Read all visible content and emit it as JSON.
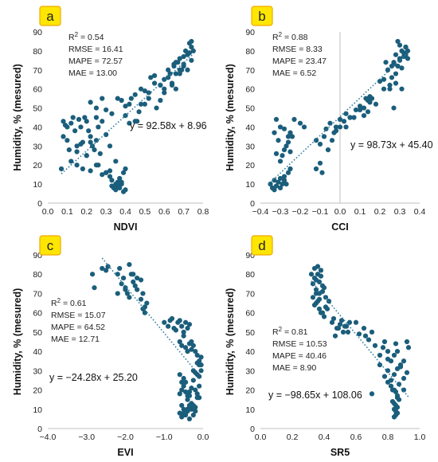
{
  "chart_data": [
    {
      "type": "scatter",
      "label": "a",
      "xlabel": "NDVI",
      "ylabel": "Humidity, % (mesured)",
      "xlim": [
        0.0,
        0.8
      ],
      "ylim": [
        0,
        90
      ],
      "xticks": [
        "0.0",
        "0.1",
        "0.2",
        "0.3",
        "0.4",
        "0.5",
        "0.6",
        "0.7",
        "0.8"
      ],
      "yticks": [
        "0",
        "10",
        "20",
        "30",
        "40",
        "50",
        "60",
        "70",
        "80",
        "90"
      ],
      "stats": [
        {
          "name": "R",
          "value": " = 0.54"
        },
        {
          "name": "RMSE",
          "value": "RMSE = 16.41"
        },
        {
          "name": "MAPE",
          "value": "MAPE = 72.57"
        },
        {
          "name": "MAE",
          "value": "MAE = 13.00"
        }
      ],
      "equation": "y = 92.58x + 8.96",
      "trendline": {
        "slope": 92.58,
        "intercept": 8.96,
        "x_range": [
          0.07,
          0.75
        ]
      },
      "marker_color": "#1B5E7B",
      "x": [
        0.07,
        0.08,
        0.09,
        0.1,
        0.11,
        0.12,
        0.13,
        0.14,
        0.15,
        0.16,
        0.17,
        0.18,
        0.19,
        0.2,
        0.21,
        0.22,
        0.23,
        0.24,
        0.25,
        0.26,
        0.08,
        0.1,
        0.12,
        0.15,
        0.18,
        0.2,
        0.22,
        0.25,
        0.28,
        0.3,
        0.32,
        0.15,
        0.17,
        0.2,
        0.22,
        0.25,
        0.27,
        0.3,
        0.32,
        0.35,
        0.26,
        0.28,
        0.3,
        0.32,
        0.33,
        0.34,
        0.35,
        0.36,
        0.37,
        0.38,
        0.39,
        0.4,
        0.35,
        0.37,
        0.38,
        0.33,
        0.36,
        0.39,
        0.4,
        0.22,
        0.25,
        0.28,
        0.3,
        0.33,
        0.36,
        0.38,
        0.4,
        0.42,
        0.43,
        0.45,
        0.47,
        0.48,
        0.5,
        0.52,
        0.53,
        0.55,
        0.55,
        0.58,
        0.6,
        0.62,
        0.65,
        0.66,
        0.68,
        0.7,
        0.72,
        0.74,
        0.45,
        0.5,
        0.52,
        0.56,
        0.58,
        0.6,
        0.62,
        0.64,
        0.65,
        0.66,
        0.68,
        0.7,
        0.71,
        0.72,
        0.73,
        0.74,
        0.75,
        0.63,
        0.67,
        0.69,
        0.7,
        0.73,
        0.74,
        0.4,
        0.42,
        0.46,
        0.48,
        0.58,
        0.6,
        0.64,
        0.66,
        0.68
      ],
      "y": [
        18,
        35,
        41,
        33,
        28,
        42,
        45,
        38,
        30,
        44,
        40,
        32,
        45,
        43,
        38,
        35,
        30,
        28,
        33,
        40,
        43,
        40,
        22,
        20,
        18,
        25,
        17,
        45,
        43,
        36,
        30,
        27,
        31,
        25,
        32,
        20,
        26,
        16,
        17,
        22,
        20,
        15,
        16,
        14,
        12,
        8,
        10,
        9,
        13,
        11,
        16,
        18,
        7,
        8,
        10,
        9,
        11,
        6,
        7,
        53,
        50,
        55,
        49,
        47,
        55,
        54,
        51,
        52,
        55,
        57,
        48,
        52,
        52,
        58,
        66,
        67,
        63,
        62,
        60,
        66,
        72,
        60,
        68,
        72,
        70,
        75,
        43,
        59,
        55,
        50,
        62,
        65,
        70,
        63,
        73,
        74,
        76,
        77,
        80,
        78,
        79,
        82,
        80,
        68,
        74,
        70,
        73,
        84,
        85,
        46,
        42,
        43,
        60,
        54,
        58,
        62,
        68,
        70
      ]
    },
    {
      "type": "scatter",
      "label": "b",
      "xlabel": "CCI",
      "ylabel": "Humidity, % (mesured)",
      "xlim": [
        -0.4,
        0.4
      ],
      "ylim": [
        0,
        90
      ],
      "xticks": [
        "−0.4",
        "−0.3",
        "−0.2",
        "−0.1",
        "0.0",
        "0.1",
        "0.2",
        "0.3",
        "0.4"
      ],
      "yticks": [
        "0",
        "10",
        "20",
        "30",
        "40",
        "50",
        "60",
        "70",
        "80",
        "90"
      ],
      "stats": [
        {
          "name": "R",
          "value": " = 0.88"
        },
        {
          "name": "RMSE",
          "value": "RMSE = 8.33"
        },
        {
          "name": "MAPE",
          "value": "MAPE = 23.47"
        },
        {
          "name": "MAE",
          "value": "MAE = 6.52"
        }
      ],
      "equation": "y = 98.73x + 45.40",
      "trendline": {
        "slope": 98.73,
        "intercept": 45.4,
        "x_range": [
          -0.36,
          0.34
        ]
      },
      "marker_color": "#1B5E7B",
      "x": [
        -0.35,
        -0.34,
        -0.33,
        -0.33,
        -0.32,
        -0.31,
        -0.3,
        -0.3,
        -0.29,
        -0.28,
        -0.28,
        -0.27,
        -0.26,
        -0.25,
        -0.32,
        -0.3,
        -0.29,
        -0.28,
        -0.27,
        -0.26,
        -0.25,
        -0.24,
        -0.32,
        -0.3,
        -0.28,
        -0.26,
        -0.25,
        -0.23,
        -0.2,
        -0.18,
        -0.33,
        -0.31,
        -0.12,
        -0.1,
        -0.08,
        -0.07,
        -0.05,
        -0.03,
        -0.02,
        0.0,
        0.02,
        0.03,
        0.05,
        0.07,
        0.08,
        -0.12,
        -0.1,
        -0.09,
        -0.06,
        -0.04,
        -0.02,
        0.0,
        0.03,
        0.05,
        0.1,
        0.12,
        0.14,
        0.15,
        0.16,
        0.18,
        0.12,
        0.14,
        0.15,
        0.1,
        0.13,
        0.2,
        0.22,
        0.24,
        0.25,
        0.26,
        0.27,
        0.28,
        0.29,
        0.3,
        0.31,
        0.32,
        0.33,
        0.34,
        0.22,
        0.24,
        0.26,
        0.27,
        0.28,
        0.3,
        0.32,
        0.33,
        0.25,
        0.28,
        0.31,
        0.34,
        0.23,
        0.27,
        0.3,
        0.33,
        0.29,
        0.31
      ],
      "y": [
        10,
        8,
        12,
        7,
        9,
        11,
        13,
        8,
        10,
        12,
        14,
        10,
        16,
        18,
        26,
        22,
        25,
        28,
        30,
        32,
        27,
        35,
        44,
        40,
        39,
        35,
        37,
        44,
        42,
        40,
        37,
        33,
        33,
        31,
        35,
        39,
        42,
        37,
        40,
        44,
        43,
        47,
        45,
        45,
        49,
        18,
        21,
        16,
        28,
        33,
        38,
        40,
        40,
        45,
        51,
        50,
        48,
        53,
        55,
        52,
        46,
        54,
        56,
        49,
        55,
        64,
        60,
        70,
        62,
        66,
        74,
        78,
        72,
        76,
        80,
        79,
        82,
        76,
        65,
        70,
        72,
        73,
        68,
        75,
        77,
        78,
        60,
        63,
        71,
        80,
        74,
        50,
        83,
        82,
        85,
        60
      ]
    },
    {
      "type": "scatter",
      "label": "c",
      "xlabel": "EVI",
      "ylabel": "Humidity, % (mesured)",
      "xlim": [
        -4.0,
        0.0
      ],
      "ylim": [
        0,
        90
      ],
      "xticks": [
        "−4.0",
        "−3.0",
        "−2.0",
        "−1.0",
        "0.0"
      ],
      "yticks": [
        "0",
        "10",
        "20",
        "30",
        "40",
        "50",
        "60",
        "70",
        "80",
        "90"
      ],
      "stats": [
        {
          "name": "R",
          "value": " = 0.61"
        },
        {
          "name": "RMSE",
          "value": "RMSE = 15.07"
        },
        {
          "name": "MAPE",
          "value": "MAPE = 64.52"
        },
        {
          "name": "MAE",
          "value": "MAE = 12.71"
        }
      ],
      "equation": "y = −24.28x + 25.20",
      "trendline": {
        "slope": -24.28,
        "intercept": 25.2,
        "x_range": [
          -2.6,
          -0.2
        ]
      },
      "marker_color": "#1B5E7B",
      "x": [
        -2.85,
        -2.8,
        -2.6,
        -2.5,
        -2.45,
        -2.2,
        -2.15,
        -2.1,
        -2.05,
        -2.0,
        -1.95,
        -1.9,
        -1.85,
        -1.8,
        -1.75,
        -1.7,
        -1.6,
        -1.55,
        -1.5,
        -1.45,
        -2.2,
        -2.0,
        -1.9,
        -1.8,
        -1.7,
        -1.6,
        -1.55,
        -1.5,
        -1.0,
        -0.9,
        -0.85,
        -0.8,
        -0.75,
        -0.7,
        -0.65,
        -0.6,
        -0.55,
        -0.5,
        -0.45,
        -0.4,
        -0.35,
        -0.3,
        -0.25,
        -0.2,
        -0.15,
        -0.1,
        -0.05,
        -0.6,
        -0.55,
        -0.5,
        -0.45,
        -0.4,
        -0.35,
        -0.3,
        -0.25,
        -0.2,
        -0.15,
        -0.1,
        -0.05,
        -0.6,
        -0.55,
        -0.5,
        -0.45,
        -0.4,
        -0.35,
        -0.3,
        -0.25,
        -0.2,
        -0.15,
        -0.1,
        -0.6,
        -0.55,
        -0.5,
        -0.45,
        -0.4,
        -0.35,
        -0.3,
        -0.25,
        -0.2,
        -0.15,
        -0.1,
        -0.55,
        -0.5,
        -0.45,
        -0.4,
        -0.35,
        -0.3,
        -0.25,
        -0.2,
        -0.6,
        -0.55,
        -0.5,
        -0.45,
        -0.4,
        -0.35,
        -0.3,
        -0.5,
        -0.45,
        -0.4,
        -0.35,
        -0.05,
        -0.1,
        -0.15
      ],
      "y": [
        80,
        73,
        83,
        82,
        84,
        80,
        83,
        75,
        78,
        72,
        70,
        85,
        80,
        76,
        74,
        78,
        77,
        70,
        63,
        65,
        70,
        73,
        68,
        80,
        72,
        67,
        62,
        60,
        55,
        53,
        56,
        57,
        52,
        51,
        55,
        56,
        53,
        50,
        55,
        52,
        54,
        45,
        43,
        40,
        38,
        35,
        33,
        45,
        43,
        48,
        42,
        40,
        44,
        41,
        30,
        29,
        28,
        27,
        37,
        18,
        20,
        22,
        24,
        17,
        19,
        21,
        25,
        20,
        18,
        16,
        28,
        24,
        26,
        19,
        15,
        17,
        10,
        12,
        11,
        16,
        22,
        12,
        10,
        8,
        9,
        11,
        13,
        7,
        9,
        8,
        6,
        7,
        9,
        10,
        12,
        13,
        8,
        7,
        10,
        5,
        30,
        33,
        34
      ]
    },
    {
      "type": "scatter",
      "label": "d",
      "xlabel": "SR5",
      "ylabel": "Humidity, % (mesured)",
      "xlim": [
        0.0,
        1.0
      ],
      "ylim": [
        0,
        90
      ],
      "xticks": [
        "0.0",
        "0.2",
        "0.4",
        "0.6",
        "0.8",
        "1.0"
      ],
      "yticks": [
        "0",
        "10",
        "20",
        "30",
        "40",
        "50",
        "60",
        "70",
        "80",
        "90"
      ],
      "stats": [
        {
          "name": "R",
          "value": " = 0.81"
        },
        {
          "name": "RMSE",
          "value": "RMSE = 10.53"
        },
        {
          "name": "MAPE",
          "value": "MAPE = 40.46"
        },
        {
          "name": "MAE",
          "value": "MAE = 8.90"
        }
      ],
      "equation": "y = −98.65x + 108.06",
      "trendline": {
        "slope": -98.65,
        "intercept": 108.06,
        "x_range": [
          0.32,
          0.93
        ]
      },
      "marker_color": "#1B5E7B",
      "x": [
        0.32,
        0.33,
        0.34,
        0.34,
        0.35,
        0.35,
        0.36,
        0.36,
        0.37,
        0.37,
        0.38,
        0.38,
        0.39,
        0.4,
        0.33,
        0.35,
        0.37,
        0.39,
        0.41,
        0.34,
        0.36,
        0.38,
        0.4,
        0.42,
        0.35,
        0.37,
        0.39,
        0.41,
        0.43,
        0.45,
        0.46,
        0.48,
        0.5,
        0.52,
        0.54,
        0.56,
        0.47,
        0.49,
        0.51,
        0.53,
        0.55,
        0.6,
        0.62,
        0.65,
        0.66,
        0.68,
        0.7,
        0.72,
        0.75,
        0.77,
        0.78,
        0.8,
        0.82,
        0.84,
        0.85,
        0.86,
        0.88,
        0.9,
        0.92,
        0.78,
        0.8,
        0.82,
        0.84,
        0.86,
        0.88,
        0.9,
        0.93,
        0.8,
        0.82,
        0.84,
        0.85,
        0.86,
        0.87,
        0.83,
        0.84,
        0.85,
        0.86,
        0.84,
        0.85,
        0.86,
        0.85,
        0.84,
        0.86,
        0.83,
        0.87,
        0.7,
        0.75,
        0.8,
        0.92,
        0.9
      ],
      "y": [
        80,
        75,
        78,
        83,
        72,
        77,
        80,
        84,
        76,
        70,
        79,
        82,
        74,
        73,
        68,
        65,
        62,
        60,
        63,
        64,
        66,
        60,
        58,
        62,
        70,
        67,
        71,
        68,
        66,
        55,
        57,
        52,
        54,
        50,
        53,
        55,
        48,
        52,
        56,
        53,
        50,
        55,
        49,
        52,
        48,
        46,
        50,
        43,
        38,
        42,
        45,
        40,
        35,
        38,
        44,
        40,
        32,
        35,
        29,
        27,
        30,
        25,
        28,
        31,
        33,
        26,
        42,
        24,
        22,
        20,
        19,
        17,
        15,
        14,
        13,
        12,
        11,
        10,
        9,
        8,
        7,
        6,
        16,
        20,
        23,
        18,
        33,
        36,
        45,
        20
      ]
    }
  ]
}
